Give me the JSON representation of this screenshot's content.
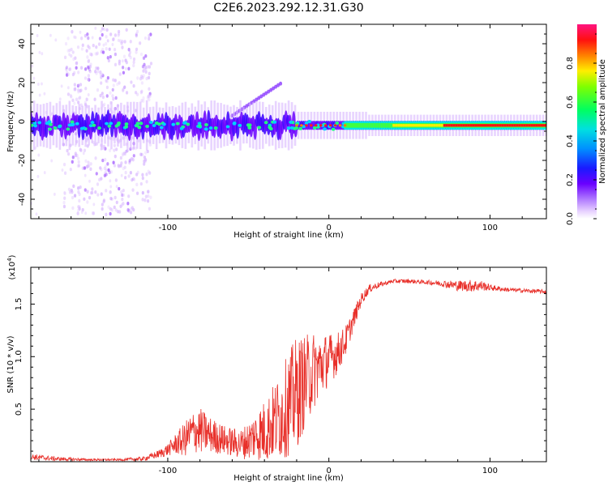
{
  "title": "C2E6.2023.292.12.31.G30",
  "colors": {
    "spectrum": [
      "#ffffff",
      "#f2e3ff",
      "#c9a0ff",
      "#8a2be2",
      "#3a00ff",
      "#0040ff",
      "#00c8ff",
      "#00ff80",
      "#40ff00",
      "#ffff00",
      "#ff8000",
      "#ff0000",
      "#ff1480"
    ],
    "snr_line": "#e8302a",
    "axis": "#000000"
  },
  "chart_data": [
    {
      "type": "heatmap",
      "name": "spectrogram",
      "xlabel": "Height of straight line (km)",
      "ylabel": "Frequency (Hz)",
      "xlim": [
        -185,
        135
      ],
      "ylim": [
        -50,
        50
      ],
      "xticks": [
        -100,
        0,
        100
      ],
      "xtick_labels": [
        "-100",
        "0",
        "100"
      ],
      "yticks": [
        -40,
        -20,
        0,
        20,
        40
      ],
      "ytick_labels": [
        "-40",
        "-20",
        "0",
        "20",
        "40"
      ],
      "dominant_frequency_hz": -2,
      "colorbar": {
        "label": "Normalized spectral amplitude",
        "range": [
          0,
          1
        ],
        "ticks": [
          0.0,
          0.2,
          0.4,
          0.6,
          0.8
        ],
        "tick_labels": [
          "0.0",
          "0.2",
          "0.4",
          "0.6",
          "0.8"
        ]
      }
    },
    {
      "type": "line",
      "name": "snr",
      "xlabel": "Height of straight line (km)",
      "ylabel": "SNR (10 * v/v)",
      "scale_label": "(x10^4)",
      "scale_base": "(x10",
      "scale_exp": "4",
      "scale_close": ")",
      "xlim": [
        -185,
        135
      ],
      "ylim": [
        0,
        1.85
      ],
      "xticks": [
        -100,
        0,
        100
      ],
      "xtick_labels": [
        "-100",
        "0",
        "100"
      ],
      "yticks": [
        0.5,
        1.0,
        1.5
      ],
      "ytick_labels": [
        "0.5",
        "1.0",
        "1.5"
      ],
      "series": [
        {
          "name": "SNR",
          "x": [
            -185,
            -170,
            -150,
            -130,
            -115,
            -105,
            -100,
            -95,
            -90,
            -85,
            -80,
            -75,
            -70,
            -65,
            -60,
            -55,
            -50,
            -45,
            -40,
            -35,
            -30,
            -25,
            -20,
            -18,
            -15,
            -10,
            -5,
            0,
            5,
            10,
            15,
            20,
            25,
            30,
            35,
            40,
            45,
            50,
            60,
            70,
            80,
            90,
            95,
            100,
            110,
            120,
            135
          ],
          "y": [
            0.05,
            0.03,
            0.02,
            0.02,
            0.03,
            0.08,
            0.12,
            0.18,
            0.22,
            0.3,
            0.32,
            0.28,
            0.25,
            0.22,
            0.2,
            0.18,
            0.22,
            0.28,
            0.32,
            0.4,
            0.48,
            0.6,
            0.7,
            0.75,
            0.8,
            0.9,
            0.95,
            1.0,
            1.05,
            1.15,
            1.35,
            1.55,
            1.65,
            1.68,
            1.7,
            1.72,
            1.72,
            1.72,
            1.71,
            1.7,
            1.68,
            1.68,
            1.68,
            1.66,
            1.64,
            1.63,
            1.62
          ],
          "noise": [
            0.03,
            0.02,
            0.01,
            0.01,
            0.02,
            0.04,
            0.06,
            0.1,
            0.16,
            0.2,
            0.22,
            0.18,
            0.16,
            0.14,
            0.14,
            0.14,
            0.18,
            0.24,
            0.3,
            0.36,
            0.42,
            0.5,
            0.55,
            0.5,
            0.45,
            0.38,
            0.3,
            0.25,
            0.2,
            0.15,
            0.1,
            0.06,
            0.04,
            0.03,
            0.02,
            0.02,
            0.02,
            0.02,
            0.02,
            0.03,
            0.05,
            0.06,
            0.05,
            0.03,
            0.02,
            0.02,
            0.02
          ]
        }
      ]
    }
  ]
}
